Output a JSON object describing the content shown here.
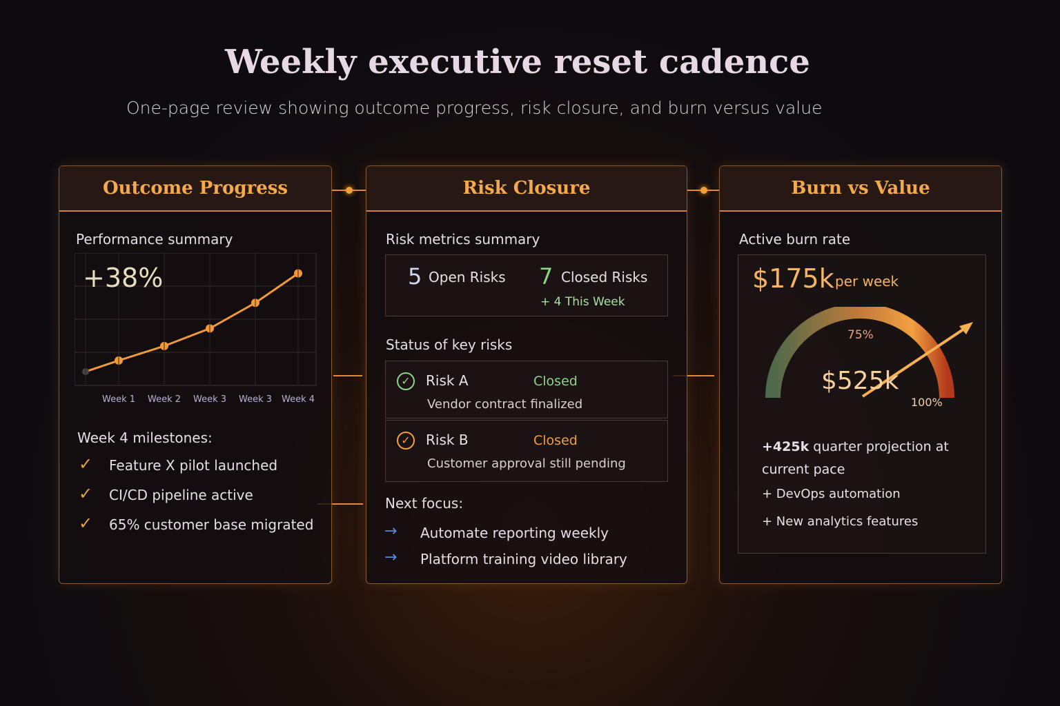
{
  "title": "Weekly executive reset cadence",
  "subtitle": "One-page review showing outcome progress, risk closure, and burn versus value",
  "outcome": {
    "header": "Outcome Progress",
    "summary_label": "Performance summary",
    "headline": "+38%",
    "milestones_label": "Week 4 milestones:",
    "milestones": [
      "Feature X pilot launched",
      "CI/CD pipeline active",
      "65% customer base migrated"
    ]
  },
  "chart_data": {
    "type": "line",
    "title": "",
    "xlabel": "",
    "ylabel": "",
    "categories": [
      "",
      "Week 1",
      "Week 2",
      "Week 3",
      "Week 3",
      "Week 4"
    ],
    "values": [
      0,
      4.3,
      9.9,
      16.7,
      26.6,
      38
    ],
    "grid": true,
    "color": "#f29a3a"
  },
  "risk": {
    "header": "Risk Closure",
    "summary_label": "Risk metrics summary",
    "open_count": "5",
    "open_label": "Open Risks",
    "closed_count": "7",
    "closed_label": "Closed Risks",
    "this_week": "+ 4 This Week",
    "status_label": "Status of key risks",
    "items": [
      {
        "name": "Risk A",
        "status": "Closed",
        "detail": "Vendor contract finalized",
        "status_color": "#8fd48a"
      },
      {
        "name": "Risk B",
        "status": "Closed",
        "detail": "Customer approval still pending",
        "status_color": "#f0a040"
      }
    ],
    "next_label": "Next focus:",
    "next": [
      "Automate reporting weekly",
      "Platform training video library"
    ]
  },
  "burn": {
    "header": "Burn vs Value",
    "rate_label": "Active burn rate",
    "rate": "$175k",
    "rate_unit": "per week",
    "gauge_value": "$525k",
    "gauge_75": "75%",
    "gauge_100": "100%",
    "projection_value": "+425k",
    "projection_text": "quarter projection at current pace",
    "bullets": [
      "+ DevOps automation",
      "+ New analytics features"
    ]
  }
}
